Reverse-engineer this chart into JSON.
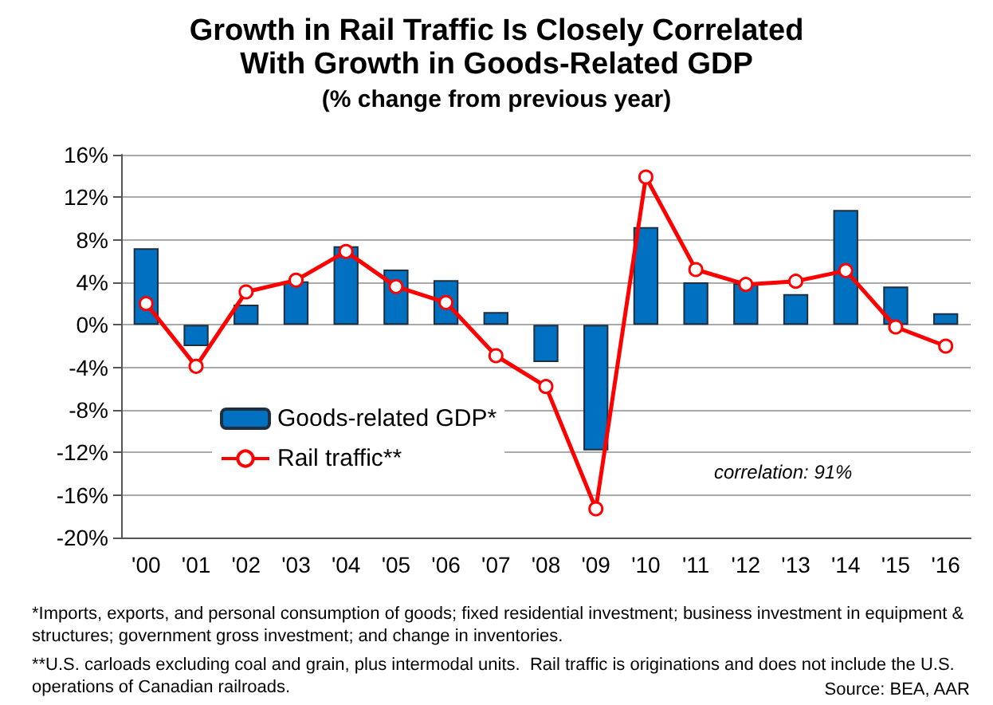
{
  "chart_data": {
    "type": "bar",
    "title": "Growth in Rail Traffic Is Closely Correlated\nWith Growth in Goods-Related GDP",
    "subtitle": "(% change from previous year)",
    "categories": [
      "'00",
      "'01",
      "'02",
      "'03",
      "'04",
      "'05",
      "'06",
      "'07",
      "'08",
      "'09",
      "'10",
      "'11",
      "'12",
      "'13",
      "'14",
      "'15",
      "'16"
    ],
    "series": [
      {
        "name": "Goods-related GDP*",
        "color": "#0070c0",
        "values": [
          7.2,
          -2.0,
          1.9,
          4.1,
          7.4,
          5.2,
          4.2,
          1.2,
          -3.5,
          -11.8,
          9.2,
          4.0,
          3.9,
          2.9,
          10.8,
          3.6,
          1.1
        ]
      },
      {
        "name": "Rail traffic**",
        "type": "line",
        "color": "#ff0000",
        "marker": "circle",
        "line_style": "solid",
        "values": [
          2.0,
          -3.9,
          3.1,
          4.2,
          6.9,
          3.6,
          2.1,
          -2.9,
          -5.8,
          -17.3,
          13.9,
          5.2,
          3.8,
          4.1,
          5.1,
          -0.2,
          -2.0
        ]
      }
    ],
    "ylim": [
      -20,
      16
    ],
    "yticks": [
      {
        "value": -20,
        "label": "-20%"
      },
      {
        "value": -16,
        "label": "-16%"
      },
      {
        "value": -12,
        "label": "-12%"
      },
      {
        "value": -8,
        "label": "-8%"
      },
      {
        "value": -4,
        "label": "-4%"
      },
      {
        "value": 0,
        "label": "0%"
      },
      {
        "value": 4,
        "label": "4%"
      },
      {
        "value": 8,
        "label": "8%"
      },
      {
        "value": 12,
        "label": "12%"
      },
      {
        "value": 16,
        "label": "16%"
      }
    ],
    "grid": "y",
    "legend": "bottom left",
    "annotations": [
      "correlation: 91%",
      "*Imports, exports, and personal consumption of goods; fixed residential investment; business investment in equipment & structures; government gross investment; and change in inventories.",
      "**U.S. carloads excluding coal and grain, plus intermodal units.  Rail traffic is originations and does not include the U.S. operations of Canadian railroads.",
      "Source: BEA, AAR"
    ]
  }
}
